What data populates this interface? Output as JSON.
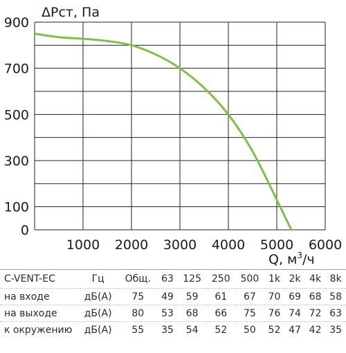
{
  "chart_data": {
    "type": "line",
    "ylabel": "ΔPст, Па",
    "xlabel": "Q, м³/ч",
    "xlim": [
      0,
      6000
    ],
    "ylim": [
      0,
      900
    ],
    "x_ticks": [
      1000,
      2000,
      3000,
      4000,
      5000,
      6000
    ],
    "y_ticks": [
      0,
      100,
      300,
      500,
      700,
      900
    ],
    "grid": true,
    "series": [
      {
        "color": "#7cc242",
        "points": [
          [
            0,
            850
          ],
          [
            500,
            835
          ],
          [
            1000,
            828
          ],
          [
            1500,
            818
          ],
          [
            2000,
            800
          ],
          [
            2500,
            760
          ],
          [
            3000,
            700
          ],
          [
            3500,
            615
          ],
          [
            4000,
            500
          ],
          [
            4500,
            340
          ],
          [
            5000,
            130
          ],
          [
            5300,
            0
          ]
        ]
      }
    ]
  },
  "noise_table": {
    "headers": [
      "C-VENT-EC",
      "Гц",
      "Общ.",
      "63",
      "125",
      "250",
      "500",
      "1k",
      "2k",
      "4k",
      "8k"
    ],
    "rows": [
      {
        "label": "на входе",
        "unit": "дБ(А)",
        "values": [
          "75",
          "49",
          "59",
          "61",
          "67",
          "70",
          "69",
          "68",
          "58"
        ]
      },
      {
        "label": "на выходе",
        "unit": "дБ(А)",
        "values": [
          "80",
          "53",
          "68",
          "66",
          "75",
          "76",
          "74",
          "72",
          "63"
        ]
      },
      {
        "label": "к окружению",
        "unit": "дБ(А)",
        "values": [
          "55",
          "35",
          "54",
          "52",
          "50",
          "52",
          "47",
          "42",
          "35"
        ]
      }
    ]
  }
}
